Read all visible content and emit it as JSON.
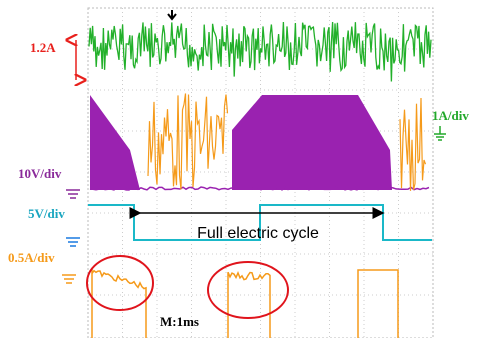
{
  "labels": {
    "current_peak": "1.2A",
    "ch_green": "1A/div",
    "ch_purple": "10V/div",
    "ch_cyan": "5V/div",
    "ch_orange": "0.5A/div",
    "cycle": "Full electric cycle",
    "timebase": "M:1ms"
  }
}
